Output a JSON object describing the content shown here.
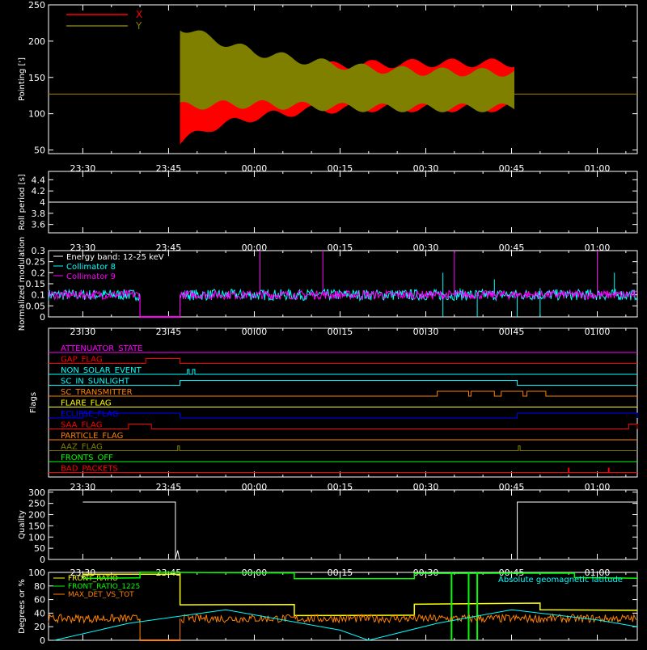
{
  "colors": {
    "background": "#000000",
    "axes": "#ffffff",
    "x": "#ff0000",
    "y": "#808000",
    "cyan": "#00ffff",
    "magenta": "#ff00ff",
    "green": "#00ff00",
    "yellow": "#ffff00",
    "orange": "#ff8000",
    "blue": "#0000ff",
    "red": "#ff0000"
  },
  "time_ticks": [
    "23:30",
    "23:45",
    "00:00",
    "00:15",
    "00:30",
    "00:45",
    "01:00"
  ],
  "chart_data": [
    {
      "id": "pointing",
      "type": "area",
      "ylabel": "Pointing [']",
      "ylim": [
        45,
        250
      ],
      "yticks": [
        50,
        100,
        150,
        200,
        250
      ],
      "legend": "top-left",
      "series": [
        {
          "name": "X",
          "color": "#ff0000",
          "baseline": 127,
          "envelope_time_min": [
            0,
            16,
            17,
            22,
            30,
            40,
            50,
            60,
            70,
            75.5
          ],
          "envelope_low": [
            127,
            127,
            60,
            80,
            95,
            105,
            108,
            108,
            108,
            108
          ],
          "envelope_high": [
            127,
            127,
            200,
            190,
            172,
            165,
            168,
            170,
            170,
            170
          ]
        },
        {
          "name": "Y",
          "color": "#808000",
          "baseline": 127,
          "envelope_time_min": [
            0,
            16,
            17,
            22,
            30,
            40,
            50,
            60,
            70,
            75.5
          ],
          "envelope_low": [
            127,
            127,
            110,
            112,
            113,
            110,
            108,
            108,
            108,
            108
          ],
          "envelope_high": [
            127,
            127,
            220,
            205,
            185,
            172,
            162,
            158,
            157,
            157
          ]
        }
      ]
    },
    {
      "id": "roll",
      "type": "line",
      "ylabel": "Roll period [s]",
      "ylim": [
        3.45,
        4.55
      ],
      "yticks": [
        3.6,
        3.8,
        4.0,
        4.2,
        4.4
      ],
      "series": [
        {
          "name": "",
          "color": "#ffffff",
          "constant": 4.0
        }
      ]
    },
    {
      "id": "modulation",
      "type": "line",
      "ylabel": "Normalized modulation",
      "ylim": [
        0,
        0.3
      ],
      "yticks": [
        0.0,
        0.05,
        0.1,
        0.15,
        0.2,
        0.25,
        0.3
      ],
      "annotation": "Energy band: 12-25 keV",
      "legend": "top-left",
      "series": [
        {
          "name": "Collimator 8",
          "color": "#00ffff",
          "mean": 0.1,
          "spread": 0.025,
          "gap_time_min": [
            10,
            17
          ],
          "spikes": [
            [
              63,
              0.2
            ],
            [
              66,
              0.13
            ],
            [
              72,
              0.17
            ],
            [
              80,
              0.13
            ],
            [
              93,
              0.2
            ]
          ],
          "dips": [
            [
              63,
              0.0
            ],
            [
              69,
              0.0
            ],
            [
              76,
              0.0
            ],
            [
              80,
              0.0
            ]
          ]
        },
        {
          "name": "Collimator 9",
          "color": "#ff00ff",
          "mean": 0.1,
          "spread": 0.02,
          "gap_time_min": [
            10,
            17
          ],
          "spikes": [
            [
              31,
              0.3
            ],
            [
              42,
              0.3
            ],
            [
              65,
              0.3
            ],
            [
              90,
              0.3
            ]
          ]
        }
      ]
    },
    {
      "id": "flags",
      "type": "table",
      "ylabel": "Flags",
      "flags": [
        {
          "name": "ATTENUATOR_STATE",
          "color": "#ff00ff",
          "highs": []
        },
        {
          "name": "GAP_FLAG",
          "color": "#ff0000",
          "highs": [
            [
              11,
              17
            ]
          ]
        },
        {
          "name": "NON_SOLAR_EVENT",
          "color": "#00ffff",
          "highs": [
            [
              18.3,
              18.6
            ],
            [
              19.2,
              19.6
            ]
          ]
        },
        {
          "name": "SC_IN_SUNLIGHT",
          "color": "#00ffff",
          "highs": [
            [
              17,
              76
            ]
          ]
        },
        {
          "name": "SC_TRANSMITTER",
          "color": "#ff8000",
          "highs": [
            [
              62,
              67.5
            ],
            [
              67.9,
              72
            ],
            [
              73.2,
              77
            ],
            [
              77.7,
              81
            ]
          ]
        },
        {
          "name": "FLARE_FLAG",
          "color": "#ffff00",
          "highs": []
        },
        {
          "name": "ECLIPSE_FLAG",
          "color": "#0000ff",
          "highs": [
            [
              0,
              17
            ],
            [
              76,
              97
            ]
          ]
        },
        {
          "name": "SAA_FLAG",
          "color": "#ff0000",
          "highs": [
            [
              8,
              12
            ],
            [
              95.5,
              97
            ]
          ]
        },
        {
          "name": "PARTICLE_FLAG",
          "color": "#ff8000",
          "highs": []
        },
        {
          "name": "AAZ_FLAG",
          "color": "#808000",
          "highs": [
            [
              16.6,
              16.9
            ],
            [
              76.2,
              76.5
            ]
          ]
        },
        {
          "name": "FRONTS_OFF",
          "color": "#00ff00",
          "highs": []
        },
        {
          "name": "BAD_PACKETS",
          "color": "#ff0000",
          "highs": [],
          "ticks": [
            85,
            92
          ]
        }
      ]
    },
    {
      "id": "quality",
      "type": "line",
      "ylabel": "Quality",
      "ylim": [
        0,
        310
      ],
      "yticks": [
        0,
        50,
        100,
        150,
        200,
        250,
        300
      ],
      "series": [
        {
          "name": "",
          "color": "#ffffff",
          "steps": [
            [
              0,
              256
            ],
            [
              16.2,
              256
            ],
            [
              16.2,
              0
            ],
            [
              16.6,
              40
            ],
            [
              16.9,
              0
            ],
            [
              76,
              0
            ],
            [
              76,
              256
            ],
            [
              97,
              256
            ]
          ]
        }
      ]
    },
    {
      "id": "ratios",
      "type": "line",
      "ylabel": "Degrees or %",
      "ylim": [
        0,
        100
      ],
      "yticks": [
        0,
        20,
        40,
        60,
        80,
        100
      ],
      "legend": "top-left",
      "series": [
        {
          "name": "FRONT_RATIO",
          "color": "#ffff00",
          "steps": [
            [
              0,
              98
            ],
            [
              17,
              98
            ],
            [
              17,
              53
            ],
            [
              37,
              53
            ],
            [
              37,
              36
            ],
            [
              58,
              36
            ],
            [
              58,
              54
            ],
            [
              80,
              54
            ],
            [
              80,
              45
            ],
            [
              97,
              45
            ]
          ]
        },
        {
          "name": "FRONT_RATIO_1225",
          "color": "#00ff00",
          "steps": [
            [
              0,
              92
            ],
            [
              10,
              92
            ],
            [
              10,
              100
            ],
            [
              37,
              100
            ],
            [
              37,
              91
            ],
            [
              58,
              91
            ],
            [
              58,
              99
            ],
            [
              86,
              99
            ],
            [
              86,
              92
            ],
            [
              97,
              92
            ]
          ],
          "vertical_lines": [
            64.5,
            67.5,
            69
          ]
        },
        {
          "name": "MAX_DET_VS_TOT",
          "color": "#ff8000",
          "mean": 32,
          "spread": 6,
          "gap_time_min": [
            10,
            17
          ]
        },
        {
          "name": "Absolute geomagnetic latitude",
          "color": "#00ffff",
          "points": [
            [
              -5,
              0
            ],
            [
              8,
              25
            ],
            [
              25,
              45
            ],
            [
              45,
              15
            ],
            [
              50,
              0
            ],
            [
              62,
              25
            ],
            [
              75,
              45
            ],
            [
              90,
              30
            ],
            [
              97,
              20
            ]
          ]
        }
      ]
    }
  ]
}
